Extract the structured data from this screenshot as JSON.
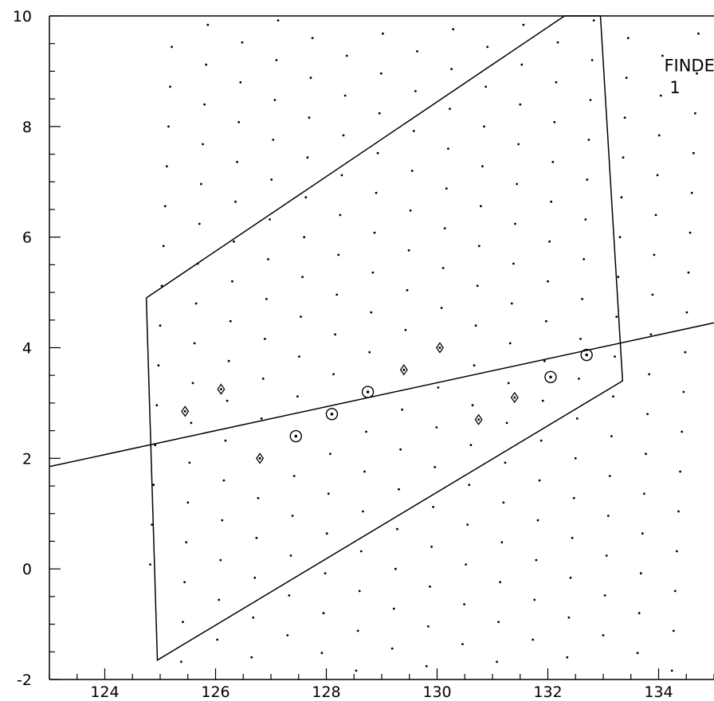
{
  "chart_data": {
    "type": "scatter",
    "title": "",
    "xlabel": "",
    "ylabel": "",
    "xlim": [
      123,
      135
    ],
    "ylim": [
      -2,
      10
    ],
    "x_ticks": [
      124,
      126,
      128,
      130,
      132,
      134
    ],
    "y_ticks": [
      -2,
      0,
      2,
      4,
      6,
      8,
      10
    ],
    "grid": false,
    "annotations": [
      {
        "text": "FINDER",
        "x": 134.1,
        "y": 9.0
      },
      {
        "text": "1",
        "x": 134.2,
        "y": 8.6
      }
    ],
    "polygon": {
      "points": [
        [
          124.75,
          4.9
        ],
        [
          132.3,
          10.0
        ],
        [
          132.95,
          10.0
        ],
        [
          133.35,
          3.4
        ],
        [
          124.95,
          -1.65
        ],
        [
          124.75,
          4.9
        ]
      ]
    },
    "fit_line": {
      "points": [
        [
          123,
          1.85
        ],
        [
          135,
          4.45
        ]
      ]
    },
    "diamonds": [
      [
        125.45,
        2.85
      ],
      [
        126.1,
        3.25
      ],
      [
        126.8,
        2.0
      ],
      [
        129.4,
        3.6
      ],
      [
        130.05,
        4.0
      ],
      [
        130.75,
        2.7
      ],
      [
        131.4,
        3.1
      ]
    ],
    "circles": [
      [
        127.45,
        2.4
      ],
      [
        128.1,
        2.8
      ],
      [
        128.75,
        3.2
      ],
      [
        132.05,
        3.47
      ],
      [
        132.7,
        3.87
      ]
    ],
    "lattice": {
      "a": [
        0.65,
        0.4
      ],
      "b": [
        -0.03,
        -0.72
      ],
      "origin": [
        127.45,
        2.4
      ],
      "ranges": {
        "a": [
          -6,
          16
        ],
        "b": [
          -12,
          14
        ]
      }
    }
  }
}
